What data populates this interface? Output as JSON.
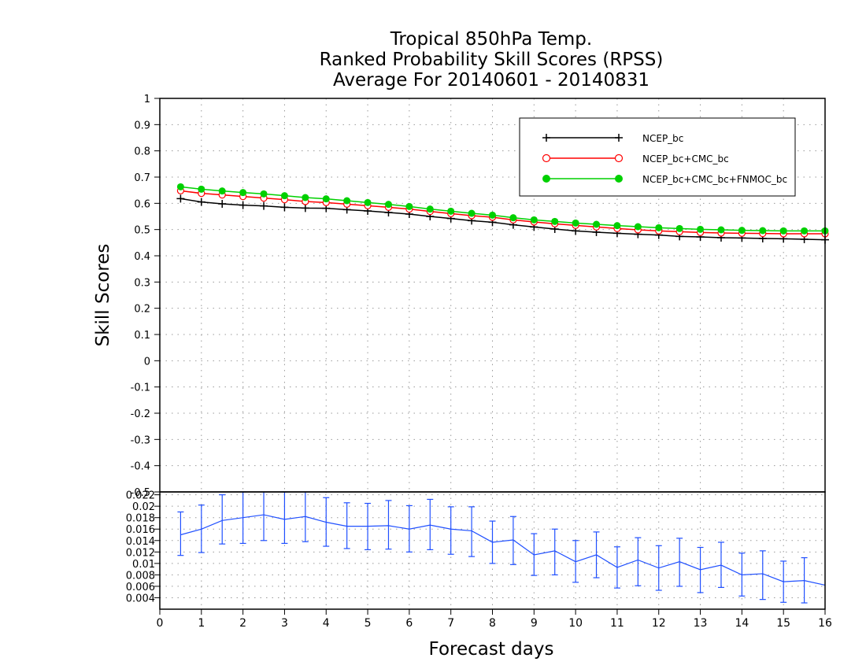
{
  "chart_data": [
    {
      "type": "line",
      "title": [
        "Tropical 850hPa Temp.",
        "Ranked Probability Skill Scores (RPSS)",
        "Average For 20140601 - 20140831"
      ],
      "xlabel": "Forecast days",
      "ylabel": "Skill Scores",
      "xlim": [
        0,
        16
      ],
      "ylim": [
        -0.5,
        1
      ],
      "x_ticks": [
        0,
        1,
        2,
        3,
        4,
        5,
        6,
        7,
        8,
        9,
        10,
        11,
        12,
        13,
        14,
        15,
        16
      ],
      "y_ticks": [
        -0.5,
        -0.4,
        -0.3,
        -0.2,
        -0.1,
        0,
        0.1,
        0.2,
        0.3,
        0.4,
        0.5,
        0.6,
        0.7,
        0.8,
        0.9,
        1
      ],
      "y_tick_labels": [
        "-0.5",
        "-0.4",
        "-0.3",
        "-0.2",
        "-0.1",
        "0",
        "0.1",
        "0.2",
        "0.3",
        "0.4",
        "0.5",
        "0.6",
        "0.7",
        "0.8",
        "0.9",
        "1"
      ],
      "grid": true,
      "legend_position": "top-right",
      "x": [
        0.5,
        1,
        1.5,
        2,
        2.5,
        3,
        3.5,
        4,
        4.5,
        5,
        5.5,
        6,
        6.5,
        7,
        7.5,
        8,
        8.5,
        9,
        9.5,
        10,
        10.5,
        11,
        11.5,
        12,
        12.5,
        13,
        13.5,
        14,
        14.5,
        15,
        15.5,
        16
      ],
      "series": [
        {
          "name": "NCEP_bc",
          "color": "#000000",
          "marker": "plus",
          "values": [
            0.618,
            0.605,
            0.598,
            0.593,
            0.59,
            0.585,
            0.582,
            0.581,
            0.576,
            0.571,
            0.565,
            0.559,
            0.55,
            0.542,
            0.534,
            0.528,
            0.518,
            0.51,
            0.502,
            0.495,
            0.49,
            0.486,
            0.482,
            0.479,
            0.474,
            0.472,
            0.469,
            0.468,
            0.466,
            0.465,
            0.463,
            0.461
          ]
        },
        {
          "name": "NCEP_bc+CMC_bc",
          "color": "#ff0000",
          "marker": "open-circle",
          "values": [
            0.648,
            0.638,
            0.632,
            0.626,
            0.62,
            0.614,
            0.607,
            0.603,
            0.597,
            0.591,
            0.585,
            0.578,
            0.569,
            0.561,
            0.553,
            0.547,
            0.537,
            0.529,
            0.522,
            0.516,
            0.51,
            0.504,
            0.499,
            0.495,
            0.492,
            0.489,
            0.487,
            0.486,
            0.485,
            0.484,
            0.484,
            0.484
          ]
        },
        {
          "name": "NCEP_bc+CMC_bc+FNMOC_bc",
          "color": "#00d000",
          "marker": "filled-circle",
          "values": [
            0.663,
            0.654,
            0.647,
            0.641,
            0.636,
            0.629,
            0.622,
            0.617,
            0.61,
            0.603,
            0.596,
            0.588,
            0.578,
            0.57,
            0.562,
            0.555,
            0.545,
            0.537,
            0.531,
            0.525,
            0.52,
            0.515,
            0.511,
            0.507,
            0.504,
            0.501,
            0.499,
            0.497,
            0.496,
            0.495,
            0.495,
            0.495
          ]
        }
      ]
    },
    {
      "type": "line",
      "xlim": [
        0,
        16
      ],
      "ylim": [
        0.002,
        0.0225
      ],
      "y_ticks": [
        0.004,
        0.006,
        0.008,
        0.01,
        0.012,
        0.014,
        0.016,
        0.018,
        0.02,
        0.022
      ],
      "y_tick_labels": [
        "0.004",
        "0.006",
        "0.008",
        "0.01",
        "0.012",
        "0.014",
        "0.016",
        "0.018",
        "0.02",
        "0.022"
      ],
      "grid": true,
      "color": "#2050ff",
      "x": [
        0.5,
        1,
        1.5,
        2,
        2.5,
        3,
        3.5,
        4,
        4.5,
        5,
        5.5,
        6,
        6.5,
        7,
        7.5,
        8,
        8.5,
        9,
        9.5,
        10,
        10.5,
        11,
        11.5,
        12,
        12.5,
        13,
        13.5,
        14,
        14.5,
        15,
        15.5,
        16
      ],
      "values": [
        0.015,
        0.016,
        0.0175,
        0.018,
        0.0185,
        0.0177,
        0.0182,
        0.0172,
        0.0165,
        0.0165,
        0.0166,
        0.016,
        0.0167,
        0.016,
        0.0157,
        0.0137,
        0.0141,
        0.0115,
        0.0122,
        0.0103,
        0.0115,
        0.0093,
        0.0106,
        0.0092,
        0.0103,
        0.0089,
        0.0097,
        0.008,
        0.0082,
        0.0068,
        0.007,
        0.0062
      ],
      "error_lower": [
        0.0114,
        0.0119,
        0.0134,
        0.0135,
        0.014,
        0.0135,
        0.0138,
        0.013,
        0.0126,
        0.0124,
        0.0125,
        0.012,
        0.0124,
        0.0116,
        0.0112,
        0.01,
        0.0098,
        0.0079,
        0.008,
        0.0067,
        0.0075,
        0.0057,
        0.0061,
        0.0053,
        0.006,
        0.0049,
        0.0058,
        0.0043,
        0.0037,
        0.0032,
        0.0031,
        null
      ],
      "error_upper": [
        0.019,
        0.0202,
        0.022,
        0.0225,
        0.0228,
        0.0225,
        0.0228,
        0.0215,
        0.0206,
        0.0205,
        0.021,
        0.0201,
        0.0212,
        0.0199,
        0.0199,
        0.0174,
        0.0182,
        0.0152,
        0.016,
        0.014,
        0.0155,
        0.0129,
        0.0145,
        0.0131,
        0.0144,
        0.0128,
        0.0137,
        0.0118,
        0.0122,
        0.0104,
        0.011,
        null
      ]
    }
  ]
}
